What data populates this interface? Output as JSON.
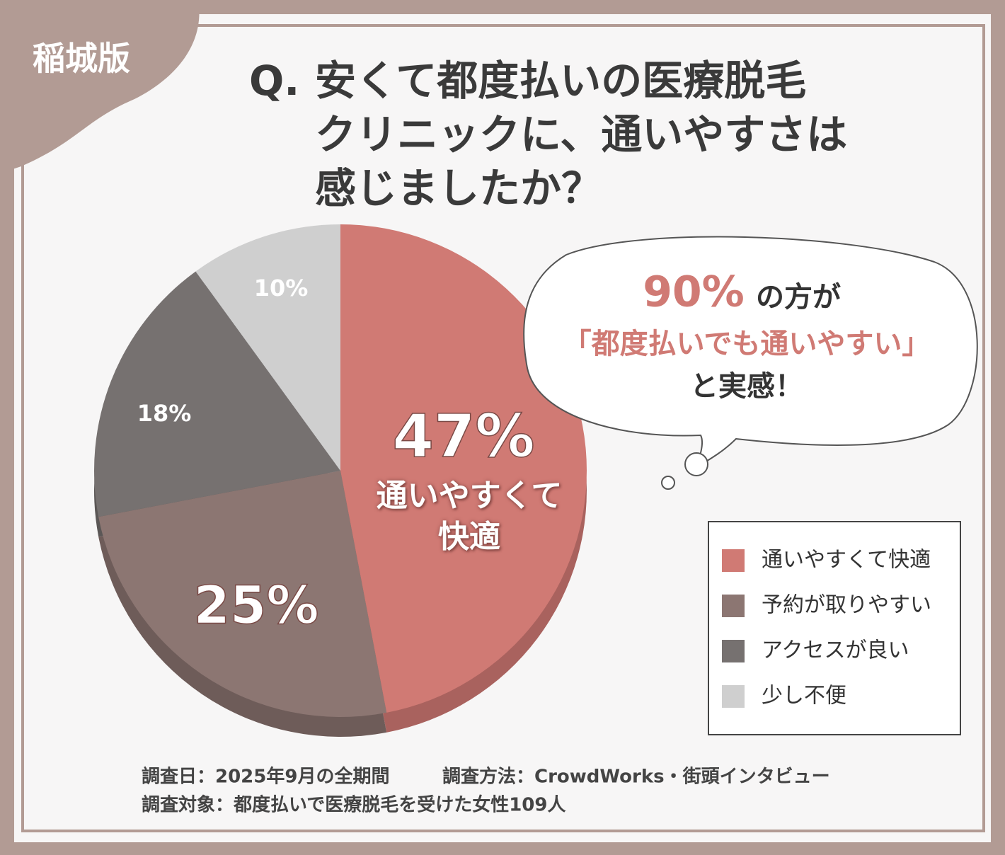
{
  "badge": "稲城版",
  "chart_data": {
    "type": "pie",
    "title": {
      "prefix": "Q.",
      "lines": [
        "安くて都度払いの医療脱毛",
        "クリニックに、通いやすさは",
        "感じましたか？"
      ]
    },
    "categories": [
      "通いやすくて快適",
      "予約が取りやすい",
      "アクセスが良い",
      "少し不便"
    ],
    "values": [
      47,
      25,
      18,
      10
    ],
    "value_labels": [
      "47%",
      "25%",
      "18%",
      "10%"
    ],
    "colors": [
      "#d07a74",
      "#8c7672",
      "#767170",
      "#cfcfcf"
    ],
    "legend": "right",
    "annotation": {
      "highlight": "90%",
      "lines": [
        "の方が",
        "「都度払いでも通いやすい」",
        "と実感！"
      ]
    }
  },
  "footer": [
    "調査日：2025年9月の全期間",
    "調査方法：CrowdWorks・街頭インタビュー",
    "調査対象：都度払いで医療脱毛を受けた女性109人"
  ]
}
